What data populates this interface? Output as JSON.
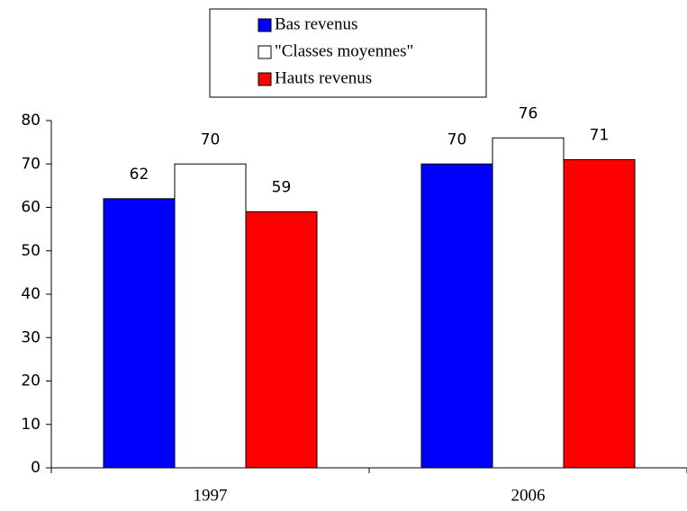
{
  "chart_data": {
    "type": "bar",
    "categories": [
      "1997",
      "2006"
    ],
    "series": [
      {
        "name": "Bas revenus",
        "color": "#0000ff",
        "values": [
          62,
          70
        ]
      },
      {
        "name": "\"Classes moyennes\"",
        "color": "#ffffff",
        "values": [
          70,
          76
        ]
      },
      {
        "name": "Hauts revenus",
        "color": "#ff0000",
        "values": [
          59,
          71
        ]
      }
    ],
    "ylim": [
      0,
      80
    ],
    "yticks": [
      0,
      10,
      20,
      30,
      40,
      50,
      60,
      70,
      80
    ],
    "legend": "top",
    "grid": false,
    "data_labels": true
  }
}
